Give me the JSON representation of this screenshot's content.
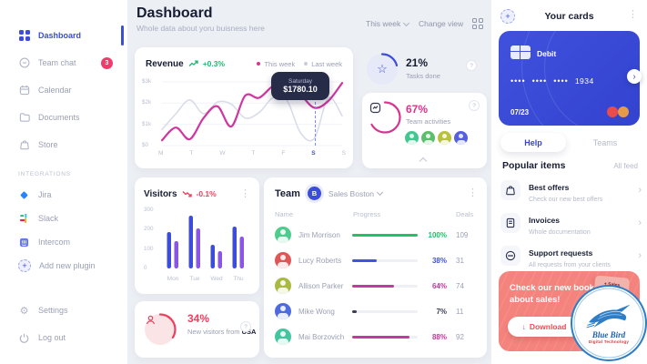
{
  "sidebar": {
    "items": [
      {
        "label": "Dashboard",
        "active": true
      },
      {
        "label": "Team chat",
        "badge": "3"
      },
      {
        "label": "Calendar"
      },
      {
        "label": "Documents"
      },
      {
        "label": "Store"
      }
    ],
    "section": "INTEGRATIONS",
    "integrations": [
      {
        "label": "Jira"
      },
      {
        "label": "Slack"
      },
      {
        "label": "Intercom"
      },
      {
        "label": "Add new plugin"
      }
    ],
    "footer": [
      {
        "label": "Settings"
      },
      {
        "label": "Log out"
      }
    ]
  },
  "header": {
    "title": "Dashboard",
    "subtitle": "Whole data about yoru buisness here",
    "period": "This week",
    "change_view": "Change view"
  },
  "revenue": {
    "title": "Revenue",
    "delta": "+0.3%",
    "legend": [
      "This week",
      "Last week"
    ],
    "tooltip_day": "Saturday",
    "tooltip_value": "$1780.10"
  },
  "stats": {
    "tasks": {
      "percent_label": "21%",
      "label": "Tasks done"
    },
    "activities": {
      "percent_label": "67%",
      "label": "Team activities",
      "avatar_colors": [
        "#43c792",
        "#5bbf6e",
        "#b8c23c",
        "#5560e0"
      ]
    }
  },
  "visitors": {
    "title": "Visitors",
    "delta": "-0.1%"
  },
  "new_visitors": {
    "percent_label": "34%",
    "text": "New visitors from",
    "bold": "USA"
  },
  "team": {
    "title": "Team",
    "badge": "B",
    "group": "Sales Boston",
    "columns": [
      "Name",
      "Progress",
      "Deals"
    ],
    "rows": [
      {
        "name": "Jim Morrison",
        "progress": 100,
        "percent_label": "100%",
        "deals": "109",
        "color": "#21c06b",
        "avatar": "#4ecb8d"
      },
      {
        "name": "Lucy Roberts",
        "progress": 38,
        "percent_label": "38%",
        "deals": "31",
        "color": "#4353e0",
        "avatar": "#e05656"
      },
      {
        "name": "Allison Parker",
        "progress": 64,
        "percent_label": "64%",
        "deals": "74",
        "color": "#c13a9e",
        "avatar": "#a9b941"
      },
      {
        "name": "Mike Wong",
        "progress": 7,
        "percent_label": "7%",
        "deals": "11",
        "color": "#3a3f52",
        "avatar": "#4e6ae0"
      },
      {
        "name": "Mai Borzovich",
        "progress": 88,
        "percent_label": "88%",
        "deals": "92",
        "color": "#c13a9e",
        "avatar": "#45c4a0"
      }
    ]
  },
  "cards_panel": {
    "title": "Your cards",
    "card_type": "Debit",
    "masked_groups": [
      "••••",
      "••••",
      "••••"
    ],
    "last4": "1934",
    "expiry": "07/23",
    "tabs": [
      "Help",
      "Teams"
    ]
  },
  "popular": {
    "title": "Popular items",
    "link": "All feed",
    "items": [
      {
        "title": "Best offers",
        "subtitle": "Check our new best offers"
      },
      {
        "title": "Invoices",
        "subtitle": "Whole documentation"
      },
      {
        "title": "Support requests",
        "subtitle": "All requests from your clients"
      }
    ]
  },
  "promo": {
    "title": "Check our new book about sales!",
    "button": "Download",
    "book_label": "+ Sales"
  },
  "watermark": {
    "name": "Blue Bird",
    "tagline": "Digital Technology"
  },
  "chart_data": [
    {
      "type": "line",
      "title": "Revenue",
      "x_labels": [
        "M",
        "T",
        "W",
        "T",
        "F",
        "S",
        "S"
      ],
      "highlight_index": 5,
      "y_ticks": [
        "$3k",
        "$2k",
        "$1k",
        "$0"
      ],
      "ylim": [
        0,
        3000
      ],
      "series": [
        {
          "name": "This week",
          "color": "#cf36a0",
          "values": [
            250,
            850,
            300,
            1300,
            1850,
            900,
            2350,
            2250,
            2800,
            2950,
            2400,
            1780,
            2100,
            2950
          ]
        },
        {
          "name": "Last week",
          "color": "#d9dde8",
          "values": [
            750,
            1500,
            2150,
            1500,
            2050,
            1950,
            1300,
            1550,
            2250,
            2150,
            600,
            350,
            2250,
            1400
          ]
        }
      ],
      "tooltip": {
        "x": "Saturday",
        "value": "$1780.10"
      },
      "legend_position": "top-right"
    },
    {
      "type": "bar",
      "title": "Visitors",
      "categories": [
        "Mon",
        "Tue",
        "Wed",
        "Thu"
      ],
      "y_ticks": [
        "300",
        "200",
        "100",
        "0"
      ],
      "ylim": [
        0,
        300
      ],
      "series": [
        {
          "name": "current",
          "color": "#3c4cdb",
          "values": [
            200,
            290,
            130,
            230
          ]
        },
        {
          "name": "previous",
          "color": "#8b56e8",
          "values": [
            150,
            220,
            95,
            175
          ]
        }
      ]
    },
    {
      "type": "donut",
      "label": "Tasks done",
      "percent": 21,
      "color": "#3c4cdb"
    },
    {
      "type": "donut",
      "label": "Team activities",
      "percent": 67,
      "color": "#d6368f"
    },
    {
      "type": "donut",
      "label": "New visitors from USA",
      "percent": 34,
      "color": "#ef3e5e"
    }
  ]
}
